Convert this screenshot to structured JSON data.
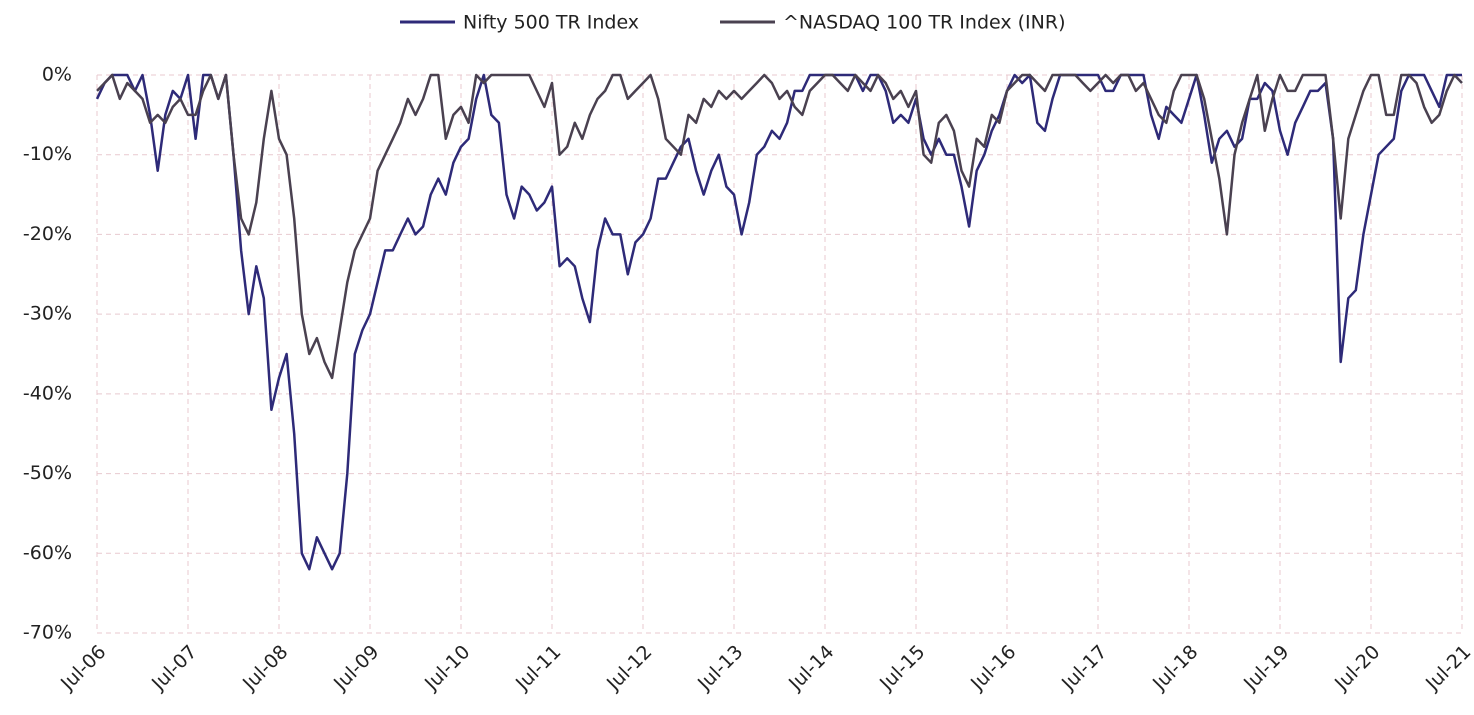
{
  "chart_data": {
    "type": "line",
    "categories": [
      "Jul-06",
      "Aug-06",
      "Sep-06",
      "Oct-06",
      "Nov-06",
      "Dec-06",
      "Jan-07",
      "Feb-07",
      "Mar-07",
      "Apr-07",
      "May-07",
      "Jun-07",
      "Jul-07",
      "Aug-07",
      "Sep-07",
      "Oct-07",
      "Nov-07",
      "Dec-07",
      "Jan-08",
      "Feb-08",
      "Mar-08",
      "Apr-08",
      "May-08",
      "Jun-08",
      "Jul-08",
      "Aug-08",
      "Sep-08",
      "Oct-08",
      "Nov-08",
      "Dec-08",
      "Jan-09",
      "Feb-09",
      "Mar-09",
      "Apr-09",
      "May-09",
      "Jun-09",
      "Jul-09",
      "Aug-09",
      "Sep-09",
      "Oct-09",
      "Nov-09",
      "Dec-09",
      "Jan-10",
      "Feb-10",
      "Mar-10",
      "Apr-10",
      "May-10",
      "Jun-10",
      "Jul-10",
      "Aug-10",
      "Sep-10",
      "Oct-10",
      "Nov-10",
      "Dec-10",
      "Jan-11",
      "Feb-11",
      "Mar-11",
      "Apr-11",
      "May-11",
      "Jun-11",
      "Jul-11",
      "Aug-11",
      "Sep-11",
      "Oct-11",
      "Nov-11",
      "Dec-11",
      "Jan-12",
      "Feb-12",
      "Mar-12",
      "Apr-12",
      "May-12",
      "Jun-12",
      "Jul-12",
      "Aug-12",
      "Sep-12",
      "Oct-12",
      "Nov-12",
      "Dec-12",
      "Jan-13",
      "Feb-13",
      "Mar-13",
      "Apr-13",
      "May-13",
      "Jun-13",
      "Jul-13",
      "Aug-13",
      "Sep-13",
      "Oct-13",
      "Nov-13",
      "Dec-13",
      "Jan-14",
      "Feb-14",
      "Mar-14",
      "Apr-14",
      "May-14",
      "Jun-14",
      "Jul-14",
      "Aug-14",
      "Sep-14",
      "Oct-14",
      "Nov-14",
      "Dec-14",
      "Jan-15",
      "Feb-15",
      "Mar-15",
      "Apr-15",
      "May-15",
      "Jun-15",
      "Jul-15",
      "Aug-15",
      "Sep-15",
      "Oct-15",
      "Nov-15",
      "Dec-15",
      "Jan-16",
      "Feb-16",
      "Mar-16",
      "Apr-16",
      "May-16",
      "Jun-16",
      "Jul-16",
      "Aug-16",
      "Sep-16",
      "Oct-16",
      "Nov-16",
      "Dec-16",
      "Jan-17",
      "Feb-17",
      "Mar-17",
      "Apr-17",
      "May-17",
      "Jun-17",
      "Jul-17",
      "Aug-17",
      "Sep-17",
      "Oct-17",
      "Nov-17",
      "Dec-17",
      "Jan-18",
      "Feb-18",
      "Mar-18",
      "Apr-18",
      "May-18",
      "Jun-18",
      "Jul-18",
      "Aug-18",
      "Sep-18",
      "Oct-18",
      "Nov-18",
      "Dec-18",
      "Jan-19",
      "Feb-19",
      "Mar-19",
      "Apr-19",
      "May-19",
      "Jun-19",
      "Jul-19",
      "Aug-19",
      "Sep-19",
      "Oct-19",
      "Nov-19",
      "Dec-19",
      "Jan-20",
      "Feb-20",
      "Mar-20",
      "Apr-20",
      "May-20",
      "Jun-20",
      "Jul-20",
      "Aug-20",
      "Sep-20",
      "Oct-20",
      "Nov-20",
      "Dec-20",
      "Jan-21",
      "Feb-21",
      "Mar-21",
      "Apr-21",
      "May-21",
      "Jun-21",
      "Jul-21"
    ],
    "series": [
      {
        "name": "Nifty 500 TR Index",
        "color": "#2e2a78",
        "values": [
          -3,
          -1,
          0,
          0,
          0,
          -2,
          0,
          -5,
          -12,
          -5,
          -2,
          -3,
          0,
          -8,
          0,
          0,
          -3,
          0,
          -10,
          -22,
          -30,
          -24,
          -28,
          -42,
          -38,
          -35,
          -45,
          -60,
          -62,
          -58,
          -60,
          -62,
          -60,
          -50,
          -35,
          -32,
          -30,
          -26,
          -22,
          -22,
          -20,
          -18,
          -20,
          -19,
          -15,
          -13,
          -15,
          -11,
          -9,
          -8,
          -3,
          0,
          -5,
          -6,
          -15,
          -18,
          -14,
          -15,
          -17,
          -16,
          -14,
          -24,
          -23,
          -24,
          -28,
          -31,
          -22,
          -18,
          -20,
          -20,
          -25,
          -21,
          -20,
          -18,
          -13,
          -13,
          -11,
          -9,
          -8,
          -12,
          -15,
          -12,
          -10,
          -14,
          -15,
          -20,
          -16,
          -10,
          -9,
          -7,
          -8,
          -6,
          -2,
          -2,
          0,
          0,
          0,
          0,
          0,
          0,
          0,
          -2,
          0,
          0,
          -2,
          -6,
          -5,
          -6,
          -3,
          -8,
          -10,
          -8,
          -10,
          -10,
          -14,
          -19,
          -12,
          -10,
          -7,
          -5,
          -2,
          0,
          -1,
          0,
          -6,
          -7,
          -3,
          0,
          0,
          0,
          0,
          0,
          0,
          -2,
          -2,
          0,
          0,
          0,
          0,
          -5,
          -8,
          -4,
          -5,
          -6,
          -3,
          0,
          -5,
          -11,
          -8,
          -7,
          -9,
          -8,
          -3,
          -3,
          -1,
          -2,
          -7,
          -10,
          -6,
          -4,
          -2,
          -2,
          -1,
          -8,
          -36,
          -28,
          -27,
          -20,
          -15,
          -10,
          -9,
          -8,
          -2,
          0,
          0,
          0,
          -2,
          -4,
          0,
          0,
          0
        ]
      },
      {
        "name": "^NASDAQ 100 TR Index (INR)",
        "color": "#4a4150",
        "values": [
          -2,
          -1,
          0,
          -3,
          -1,
          -2,
          -3,
          -6,
          -5,
          -6,
          -4,
          -3,
          -5,
          -5,
          -2,
          0,
          -3,
          0,
          -10,
          -18,
          -20,
          -16,
          -8,
          -2,
          -8,
          -10,
          -18,
          -30,
          -35,
          -33,
          -36,
          -38,
          -32,
          -26,
          -22,
          -20,
          -18,
          -12,
          -10,
          -8,
          -6,
          -3,
          -5,
          -3,
          0,
          0,
          -8,
          -5,
          -4,
          -6,
          0,
          -1,
          0,
          0,
          0,
          0,
          0,
          0,
          -2,
          -4,
          -1,
          -10,
          -9,
          -6,
          -8,
          -5,
          -3,
          -2,
          0,
          0,
          -3,
          -2,
          -1,
          0,
          -3,
          -8,
          -9,
          -10,
          -5,
          -6,
          -3,
          -4,
          -2,
          -3,
          -2,
          -3,
          -2,
          -1,
          0,
          -1,
          -3,
          -2,
          -4,
          -5,
          -2,
          -1,
          0,
          0,
          -1,
          -2,
          0,
          -1,
          -2,
          0,
          -1,
          -3,
          -2,
          -4,
          -2,
          -10,
          -11,
          -6,
          -5,
          -7,
          -12,
          -14,
          -8,
          -9,
          -5,
          -6,
          -2,
          -1,
          0,
          0,
          -1,
          -2,
          0,
          0,
          0,
          0,
          -1,
          -2,
          -1,
          0,
          -1,
          0,
          0,
          -2,
          -1,
          -3,
          -5,
          -6,
          -2,
          0,
          0,
          0,
          -3,
          -8,
          -13,
          -20,
          -10,
          -6,
          -3,
          0,
          -7,
          -3,
          0,
          -2,
          -2,
          0,
          0,
          0,
          0,
          -8,
          -18,
          -8,
          -5,
          -2,
          0,
          0,
          -5,
          -5,
          0,
          0,
          -1,
          -4,
          -6,
          -5,
          -2,
          0,
          -1
        ]
      }
    ],
    "xticks": [
      "Jul-06",
      "Jul-07",
      "Jul-08",
      "Jul-09",
      "Jul-10",
      "Jul-11",
      "Jul-12",
      "Jul-13",
      "Jul-14",
      "Jul-15",
      "Jul-16",
      "Jul-17",
      "Jul-18",
      "Jul-19",
      "Jul-20",
      "Jul-21"
    ],
    "ylim": [
      -70,
      0
    ],
    "yticks": [
      {
        "value": 0,
        "label": "0%"
      },
      {
        "value": -10,
        "label": "-10%"
      },
      {
        "value": -20,
        "label": "-20%"
      },
      {
        "value": -30,
        "label": "-30%"
      },
      {
        "value": -40,
        "label": "-40%"
      },
      {
        "value": -50,
        "label": "-50%"
      },
      {
        "value": -60,
        "label": "-60%"
      },
      {
        "value": -70,
        "label": "-70%"
      }
    ],
    "grid": true,
    "legend": "top"
  }
}
